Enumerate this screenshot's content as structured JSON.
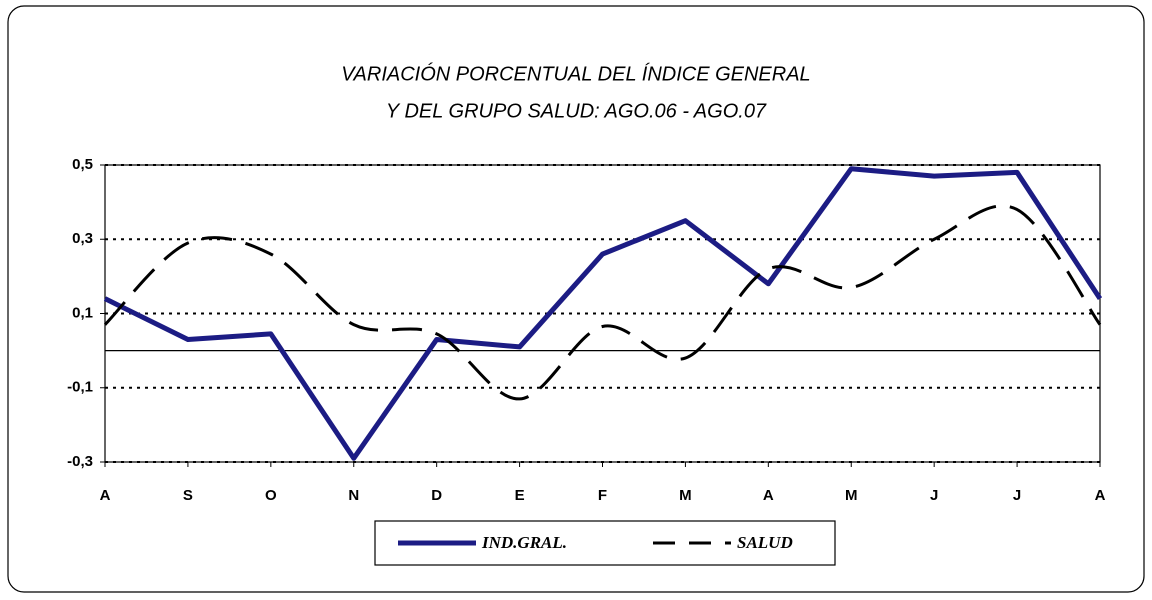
{
  "chart_data": {
    "type": "line",
    "title": "VARIACIÓN PORCENTUAL DEL ÍNDICE GENERAL",
    "subtitle": "Y DEL GRUPO SALUD:  AGO.06 - AGO.07",
    "categories": [
      "A",
      "S",
      "O",
      "N",
      "D",
      "E",
      "F",
      "M",
      "A",
      "M",
      "J",
      "J",
      "A"
    ],
    "series": [
      {
        "name": "IND.GRAL.",
        "color": "#1c1c84",
        "style": "solid",
        "smooth": false,
        "values": [
          0.14,
          0.03,
          0.045,
          -0.29,
          0.03,
          0.01,
          0.26,
          0.35,
          0.18,
          0.49,
          0.47,
          0.48,
          0.14
        ]
      },
      {
        "name": "SALUD",
        "color": "#000000",
        "style": "dashed",
        "smooth": true,
        "values": [
          0.07,
          0.29,
          0.26,
          0.07,
          0.045,
          -0.13,
          0.065,
          -0.02,
          0.22,
          0.17,
          0.3,
          0.38,
          0.07
        ]
      }
    ],
    "ylim": [
      -0.3,
      0.5
    ],
    "yticks": [
      {
        "value": -0.3,
        "label": "-0,3"
      },
      {
        "value": -0.1,
        "label": "-0,1"
      },
      {
        "value": 0.1,
        "label": "0,1"
      },
      {
        "value": 0.3,
        "label": "0,3"
      },
      {
        "value": 0.5,
        "label": "0,5"
      }
    ],
    "grid": true
  }
}
